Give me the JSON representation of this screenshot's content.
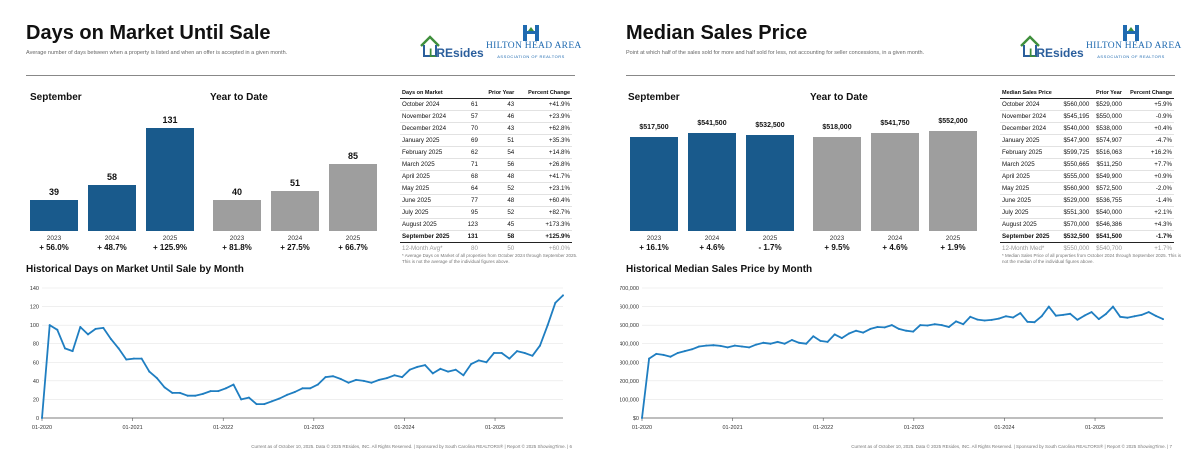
{
  "left": {
    "title": "Days on Market Until Sale",
    "subtitle": "Average number of days between when a property is listed and when an offer is accepted in a given month.",
    "month_label": "September",
    "ytd_label": "Year to Date",
    "month_bars": [
      {
        "year": "2023",
        "value": "39",
        "pct": "+ 56.0%",
        "num": 39
      },
      {
        "year": "2024",
        "value": "58",
        "pct": "+ 48.7%",
        "num": 58
      },
      {
        "year": "2025",
        "value": "131",
        "pct": "+ 125.9%",
        "num": 131
      }
    ],
    "ytd_bars": [
      {
        "year": "2023",
        "value": "40",
        "pct": "+ 81.8%",
        "num": 40
      },
      {
        "year": "2024",
        "value": "51",
        "pct": "+ 27.5%",
        "num": 51
      },
      {
        "year": "2025",
        "value": "85",
        "pct": "+ 66.7%",
        "num": 85
      }
    ],
    "table": {
      "headers": [
        "Days on Market",
        "",
        "Prior Year",
        "Percent Change"
      ],
      "rows": [
        [
          "October 2024",
          "61",
          "43",
          "+41.9%"
        ],
        [
          "November 2024",
          "57",
          "46",
          "+23.9%"
        ],
        [
          "December 2024",
          "70",
          "43",
          "+62.8%"
        ],
        [
          "January 2025",
          "69",
          "51",
          "+35.3%"
        ],
        [
          "February 2025",
          "62",
          "54",
          "+14.8%"
        ],
        [
          "March 2025",
          "71",
          "56",
          "+26.8%"
        ],
        [
          "April 2025",
          "68",
          "48",
          "+41.7%"
        ],
        [
          "May 2025",
          "64",
          "52",
          "+23.1%"
        ],
        [
          "June 2025",
          "77",
          "48",
          "+60.4%"
        ],
        [
          "July 2025",
          "95",
          "52",
          "+82.7%"
        ],
        [
          "August 2025",
          "123",
          "45",
          "+173.3%"
        ]
      ],
      "current": [
        "September 2025",
        "131",
        "58",
        "+125.9%"
      ],
      "avg": [
        "12-Month Avg*",
        "80",
        "50",
        "+60.0%"
      ],
      "note": "* Average Days on Market of all properties from October 2024 through September 2025. This is not the average of the individual figures above."
    },
    "hist_title": "Historical Days on Market Until Sale by Month",
    "footer": "Current as of October 10, 2025. Data © 2025 REsides, INC. All Rights Reserved.  |  Sponsored by South Carolina REALTORS®  |  Report © 2025 ShowingTime.  |  6"
  },
  "right": {
    "title": "Median Sales Price",
    "subtitle": "Point at which half of the sales sold for more and half sold for less, not accounting for seller concessions, in a given month.",
    "month_label": "September",
    "ytd_label": "Year to Date",
    "month_bars": [
      {
        "year": "2023",
        "value": "$517,500",
        "pct": "+ 16.1%",
        "num": 517500
      },
      {
        "year": "2024",
        "value": "$541,500",
        "pct": "+ 4.6%",
        "num": 541500
      },
      {
        "year": "2025",
        "value": "$532,500",
        "pct": "- 1.7%",
        "num": 532500
      }
    ],
    "ytd_bars": [
      {
        "year": "2023",
        "value": "$518,000",
        "pct": "+ 9.5%",
        "num": 518000
      },
      {
        "year": "2024",
        "value": "$541,750",
        "pct": "+ 4.6%",
        "num": 541750
      },
      {
        "year": "2025",
        "value": "$552,000",
        "pct": "+ 1.9%",
        "num": 552000
      }
    ],
    "table": {
      "headers": [
        "Median Sales Price",
        "",
        "Prior Year",
        "Percent Change"
      ],
      "rows": [
        [
          "October 2024",
          "$560,000",
          "$529,000",
          "+5.9%"
        ],
        [
          "November 2024",
          "$545,195",
          "$550,000",
          "-0.9%"
        ],
        [
          "December 2024",
          "$540,000",
          "$538,000",
          "+0.4%"
        ],
        [
          "January 2025",
          "$547,900",
          "$574,907",
          "-4.7%"
        ],
        [
          "February 2025",
          "$599,725",
          "$516,063",
          "+16.2%"
        ],
        [
          "March 2025",
          "$550,665",
          "$511,250",
          "+7.7%"
        ],
        [
          "April 2025",
          "$555,000",
          "$549,900",
          "+0.9%"
        ],
        [
          "May 2025",
          "$560,900",
          "$572,500",
          "-2.0%"
        ],
        [
          "June 2025",
          "$529,000",
          "$536,755",
          "-1.4%"
        ],
        [
          "July 2025",
          "$551,300",
          "$540,000",
          "+2.1%"
        ],
        [
          "August 2025",
          "$570,000",
          "$546,386",
          "+4.3%"
        ]
      ],
      "current": [
        "September 2025",
        "$532,500",
        "$541,500",
        "-1.7%"
      ],
      "avg": [
        "12-Month Med*",
        "$550,000",
        "$540,700",
        "+1.7%"
      ],
      "note": "* Median Sales Price of all properties from October 2024 through September 2025. This is not the median of the individual figures above."
    },
    "hist_title": "Historical Median Sales Price by Month",
    "footer": "Current as of October 10, 2025. Data © 2025 REsides, INC. All Rights Reserved.  |  Sponsored by South Carolina REALTORS®  |  Report © 2025 ShowingTime.  |  7"
  },
  "brand": {
    "resides_prefix": "L",
    "resides_rest": "REsides",
    "hha_name": "HILTON HEAD AREA",
    "hha_sub": "ASSOCIATION OF REALTORS",
    "green": "#3f8f3c",
    "blue": "#1f6ab0"
  },
  "chart_data": [
    {
      "type": "line",
      "title": "Historical Days on Market Until Sale by Month",
      "x_tick_labels": [
        "01-2020",
        "01-2021",
        "01-2022",
        "01-2023",
        "01-2024",
        "01-2025"
      ],
      "y_tick_labels": [
        "0",
        "20",
        "40",
        "60",
        "80",
        "100",
        "120",
        "140"
      ],
      "ylim": [
        0,
        140
      ],
      "values": [
        0,
        100,
        95,
        75,
        72,
        98,
        90,
        96,
        97,
        85,
        75,
        63,
        64,
        64,
        50,
        43,
        33,
        27,
        27,
        24,
        24,
        26,
        29,
        29,
        32,
        36,
        20,
        22,
        15,
        15,
        18,
        21,
        25,
        28,
        32,
        32,
        36,
        44,
        45,
        42,
        38,
        41,
        40,
        38,
        41,
        43,
        46,
        44,
        52,
        55,
        57,
        48,
        53,
        50,
        52,
        46,
        58,
        62,
        60,
        70,
        70,
        64,
        72,
        70,
        67,
        78,
        100,
        124,
        132
      ],
      "color": "#1f7ec1"
    },
    {
      "type": "line",
      "title": "Historical Median Sales Price by Month",
      "x_tick_labels": [
        "01-2020",
        "01-2021",
        "01-2022",
        "01-2023",
        "01-2024",
        "01-2025"
      ],
      "y_tick_labels": [
        "$0",
        "$100,000",
        "$200,000",
        "$300,000",
        "$400,000",
        "$500,000",
        "$600,000",
        "$700,000"
      ],
      "ylim": [
        0,
        700000
      ],
      "values": [
        0,
        320000,
        345000,
        340000,
        330000,
        350000,
        360000,
        370000,
        385000,
        390000,
        392000,
        388000,
        380000,
        390000,
        385000,
        380000,
        395000,
        405000,
        400000,
        410000,
        400000,
        420000,
        405000,
        400000,
        440000,
        415000,
        410000,
        450000,
        430000,
        455000,
        470000,
        460000,
        480000,
        490000,
        488000,
        500000,
        480000,
        470000,
        465000,
        500000,
        498000,
        505000,
        500000,
        490000,
        520000,
        505000,
        545000,
        530000,
        525000,
        528000,
        535000,
        548000,
        541000,
        565000,
        518000,
        516000,
        547900,
        599725,
        550665,
        555000,
        560900,
        529000,
        551300,
        570000,
        532500,
        560000,
        600000,
        545000,
        540000,
        548000,
        555000,
        570000,
        550000,
        532500
      ],
      "color": "#1f7ec1"
    }
  ]
}
